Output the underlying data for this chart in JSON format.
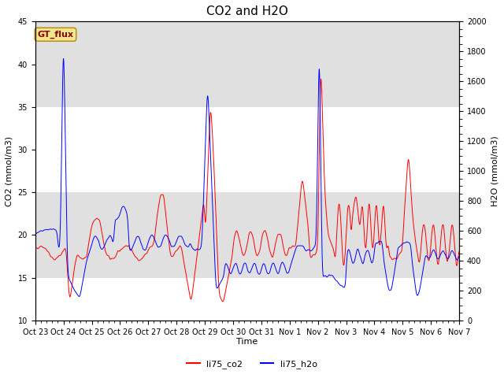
{
  "title": "CO2 and H2O",
  "xlabel": "Time",
  "ylabel_left": "CO2 (mmol/m3)",
  "ylabel_right": "H2O (mmol/m3)",
  "ylim_left": [
    10,
    45
  ],
  "ylim_right": [
    0,
    2000
  ],
  "legend_labels": [
    "li75_co2",
    "li75_h2o"
  ],
  "legend_colors": [
    "red",
    "blue"
  ],
  "gt_flux_label": "GT_flux",
  "xtick_labels": [
    "Oct 23",
    "Oct 24",
    "Oct 25",
    "Oct 26",
    "Oct 27",
    "Oct 28",
    "Oct 29",
    "Oct 30",
    "Oct 31",
    "Nov 1",
    "Nov 2",
    "Nov 3",
    "Nov 4",
    "Nov 5",
    "Nov 6",
    "Nov 7"
  ],
  "background_color": "#ffffff",
  "band_color": "#e0e0e0",
  "title_fontsize": 11,
  "axis_label_fontsize": 8,
  "tick_fontsize": 8
}
